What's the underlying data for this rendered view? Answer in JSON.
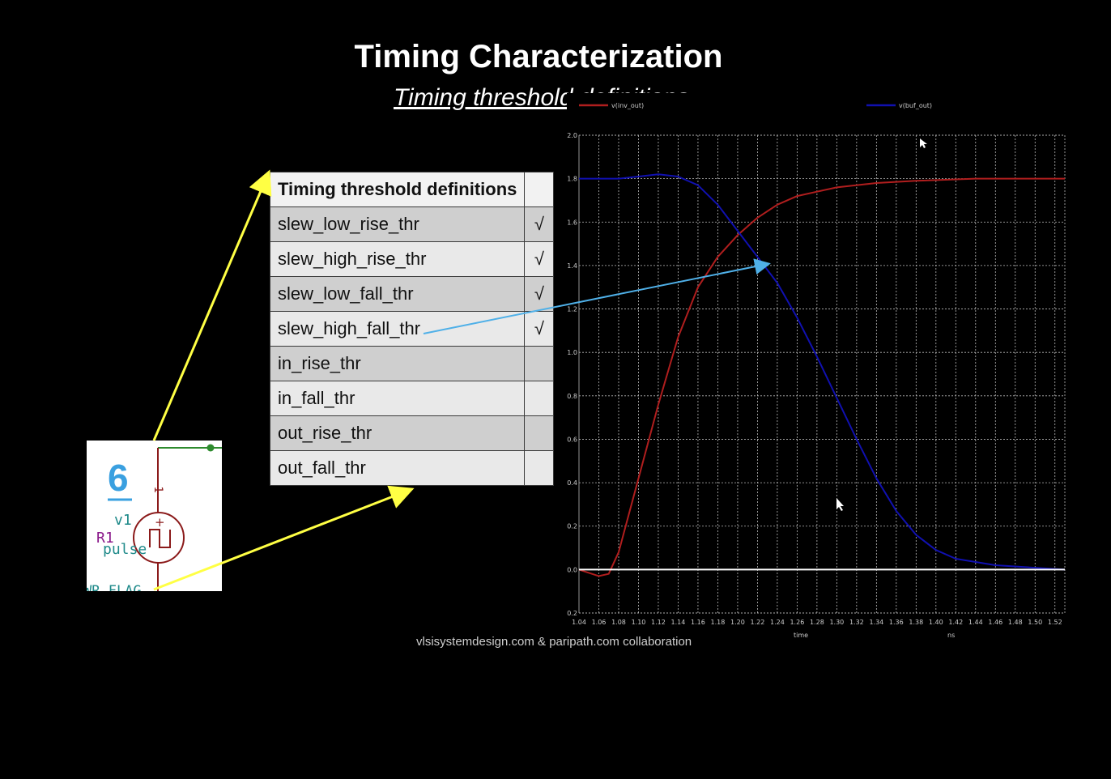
{
  "slide": {
    "title": "Timing Characterization",
    "subtitle": "Timing threshold definitions",
    "footer": "vlsisystemdesign.com & paripath.com collaboration"
  },
  "table": {
    "header": "Timing threshold definitions",
    "rows": [
      {
        "name": "slew_low_rise_thr",
        "mark": "√"
      },
      {
        "name": "slew_high_rise_thr",
        "mark": "√"
      },
      {
        "name": "slew_low_fall_thr",
        "mark": "√"
      },
      {
        "name": "slew_high_fall_thr",
        "mark": "√"
      },
      {
        "name": "in_rise_thr",
        "mark": ""
      },
      {
        "name": "in_fall_thr",
        "mark": ""
      },
      {
        "name": "out_rise_thr",
        "mark": ""
      },
      {
        "name": "out_fall_thr",
        "mark": ""
      }
    ]
  },
  "schematic": {
    "step_number": "6",
    "source_name": "v1",
    "source_type": "pulse",
    "resistor_label": "R1",
    "pin_label": "-1",
    "flag_label": "WR_FLAG",
    "plus_sign": "+"
  },
  "colors": {
    "background": "#000000",
    "arrow_yellow": "#ffff44",
    "arrow_blue": "#4fb0e8",
    "trace_red": "#b01e1e",
    "trace_blue": "#1010b0"
  },
  "chart_data": {
    "type": "line",
    "title": "",
    "xlabel": "time",
    "x_unit": "ns",
    "ylabel": "",
    "xlim": [
      1.04,
      1.53
    ],
    "ylim": [
      -0.2,
      2.0
    ],
    "x_ticks": [
      "1.04",
      "1.06",
      "1.08",
      "1.10",
      "1.12",
      "1.14",
      "1.16",
      "1.18",
      "1.20",
      "1.22",
      "1.24",
      "1.26",
      "1.28",
      "1.30",
      "1.32",
      "1.34",
      "1.36",
      "1.38",
      "1.40",
      "1.42",
      "1.44",
      "1.46",
      "1.48",
      "1.50",
      "1.52"
    ],
    "y_ticks": [
      "2.0",
      "1.8",
      "1.6",
      "1.4",
      "1.2",
      "1.0",
      "0.8",
      "0.6",
      "0.4",
      "0.2",
      "0.0",
      "-0.2"
    ],
    "grid": true,
    "legend": "top",
    "series": [
      {
        "name": "v(inv_out)",
        "color": "#b01e1e",
        "points": [
          [
            1.04,
            0.0
          ],
          [
            1.06,
            -0.03
          ],
          [
            1.07,
            -0.02
          ],
          [
            1.08,
            0.08
          ],
          [
            1.1,
            0.42
          ],
          [
            1.12,
            0.76
          ],
          [
            1.14,
            1.07
          ],
          [
            1.16,
            1.3
          ],
          [
            1.18,
            1.44
          ],
          [
            1.2,
            1.54
          ],
          [
            1.22,
            1.62
          ],
          [
            1.24,
            1.68
          ],
          [
            1.26,
            1.72
          ],
          [
            1.28,
            1.74
          ],
          [
            1.3,
            1.76
          ],
          [
            1.34,
            1.78
          ],
          [
            1.38,
            1.79
          ],
          [
            1.44,
            1.8
          ],
          [
            1.53,
            1.8
          ]
        ]
      },
      {
        "name": "v(buf_out)",
        "color": "#1010b0",
        "points": [
          [
            1.04,
            1.8
          ],
          [
            1.08,
            1.8
          ],
          [
            1.1,
            1.81
          ],
          [
            1.12,
            1.82
          ],
          [
            1.14,
            1.81
          ],
          [
            1.16,
            1.77
          ],
          [
            1.18,
            1.68
          ],
          [
            1.2,
            1.56
          ],
          [
            1.22,
            1.44
          ],
          [
            1.24,
            1.32
          ],
          [
            1.26,
            1.16
          ],
          [
            1.28,
            0.98
          ],
          [
            1.3,
            0.79
          ],
          [
            1.32,
            0.6
          ],
          [
            1.34,
            0.42
          ],
          [
            1.36,
            0.27
          ],
          [
            1.38,
            0.16
          ],
          [
            1.4,
            0.09
          ],
          [
            1.42,
            0.05
          ],
          [
            1.46,
            0.02
          ],
          [
            1.53,
            0.0
          ]
        ]
      },
      {
        "name": "",
        "color": "#ffffff",
        "points": [
          [
            1.04,
            0.0
          ],
          [
            1.53,
            0.0
          ]
        ]
      }
    ]
  }
}
